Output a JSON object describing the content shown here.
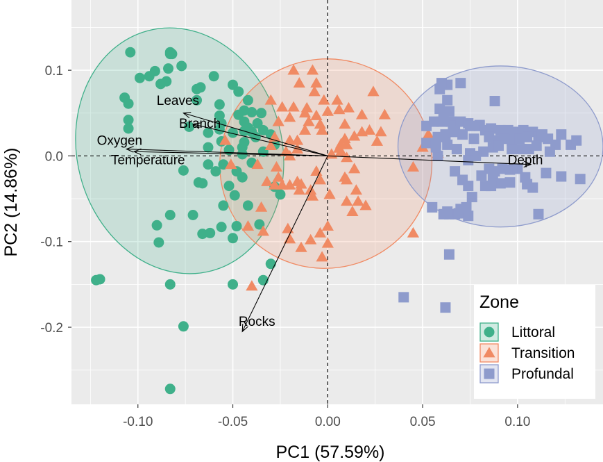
{
  "chart_data": {
    "type": "scatter",
    "xlabel": "PC1 (57.59%)",
    "ylabel": "PC2 (14.86%)",
    "xlim": [
      -0.135,
      0.145
    ],
    "ylim": [
      -0.29,
      0.182
    ],
    "x_ticks": [
      -0.1,
      -0.05,
      0.0,
      0.05,
      0.1
    ],
    "x_tick_labels": [
      "-0.10",
      "-0.05",
      "0.00",
      "0.05",
      "0.10"
    ],
    "y_ticks": [
      -0.2,
      -0.1,
      0.0,
      0.1
    ],
    "y_tick_labels": [
      "-0.2",
      "-0.1",
      "0.0",
      "0.1"
    ],
    "grid": true,
    "reference_lines": {
      "x": 0,
      "y": 0,
      "style": "dashed"
    },
    "legend": {
      "title": "Zone",
      "position": "bottom-right"
    },
    "colors": {
      "Littoral": "#3fb08a",
      "Transition": "#f08a63",
      "Profundal": "#8e9bcc",
      "panel_bg": "#ebebeb",
      "grid": "#ffffff"
    },
    "series": [
      {
        "name": "Littoral",
        "marker": "circle",
        "ellipse": {
          "cx": -0.078,
          "cy": 0.006,
          "rx": 0.054,
          "ry": 0.145,
          "angle_deg": -15
        },
        "points": [
          [
            -0.104,
            0.121
          ],
          [
            -0.083,
            0.121
          ],
          [
            -0.083,
            0.119
          ],
          [
            -0.082,
            0.119
          ],
          [
            -0.077,
            0.105
          ],
          [
            -0.084,
            0.102
          ],
          [
            -0.091,
            0.099
          ],
          [
            -0.094,
            0.093
          ],
          [
            -0.099,
            0.091
          ],
          [
            -0.06,
            0.093
          ],
          [
            -0.088,
            0.084
          ],
          [
            -0.085,
            0.087
          ],
          [
            -0.067,
            0.08
          ],
          [
            -0.05,
            0.083
          ],
          [
            -0.069,
            0.078
          ],
          [
            -0.069,
            0.065
          ],
          [
            -0.057,
            0.06
          ],
          [
            -0.047,
            0.075
          ],
          [
            -0.042,
            0.065
          ],
          [
            -0.044,
            0.053
          ],
          [
            -0.04,
            0.051
          ],
          [
            -0.057,
            0.047
          ],
          [
            -0.107,
            0.068
          ],
          [
            -0.105,
            0.061
          ],
          [
            -0.105,
            0.042
          ],
          [
            -0.105,
            0.032
          ],
          [
            -0.056,
            0.038
          ],
          [
            -0.073,
            0.034
          ],
          [
            -0.063,
            0.01
          ],
          [
            -0.05,
            0.027
          ],
          [
            -0.035,
            0.05
          ],
          [
            -0.03,
            0.025
          ],
          [
            -0.028,
            0.013
          ],
          [
            -0.038,
            0.022
          ],
          [
            -0.052,
            0.007
          ],
          [
            -0.045,
            0.002
          ],
          [
            -0.04,
            -0.008
          ],
          [
            -0.055,
            -0.01
          ],
          [
            -0.063,
            -0.01
          ],
          [
            -0.076,
            -0.017
          ],
          [
            -0.059,
            -0.018
          ],
          [
            -0.048,
            -0.018
          ],
          [
            -0.045,
            -0.025
          ],
          [
            -0.068,
            -0.031
          ],
          [
            -0.052,
            -0.035
          ],
          [
            -0.066,
            -0.032
          ],
          [
            -0.049,
            -0.046
          ],
          [
            -0.028,
            -0.036
          ],
          [
            -0.025,
            -0.045
          ],
          [
            -0.042,
            -0.058
          ],
          [
            -0.055,
            -0.058
          ],
          [
            -0.083,
            -0.069
          ],
          [
            -0.071,
            -0.069
          ],
          [
            -0.09,
            -0.081
          ],
          [
            -0.056,
            -0.083
          ],
          [
            -0.048,
            -0.082
          ],
          [
            -0.036,
            -0.08
          ],
          [
            -0.066,
            -0.091
          ],
          [
            -0.062,
            -0.09
          ],
          [
            -0.05,
            -0.096
          ],
          [
            -0.089,
            -0.101
          ],
          [
            -0.03,
            -0.126
          ],
          [
            -0.034,
            -0.145
          ],
          [
            -0.05,
            -0.15
          ],
          [
            -0.083,
            -0.15
          ],
          [
            -0.12,
            -0.144
          ],
          [
            -0.122,
            -0.145
          ],
          [
            -0.076,
            -0.199
          ],
          [
            -0.083,
            -0.272
          ],
          [
            -0.042,
            0.033
          ],
          [
            -0.037,
            0.038
          ],
          [
            -0.034,
            0.03
          ],
          [
            -0.045,
            0.01
          ],
          [
            -0.063,
            0.027
          ],
          [
            -0.034,
            0.005
          ],
          [
            -0.044,
            0.04
          ],
          [
            -0.047,
            0.048
          ],
          [
            -0.057,
            0.031
          ],
          [
            -0.044,
            0.029
          ],
          [
            -0.056,
            0.017
          ],
          [
            -0.044,
            0.016
          ],
          [
            -0.04,
            0.028
          ]
        ]
      },
      {
        "name": "Transition",
        "marker": "triangle",
        "ellipse": {
          "cx": -0.001,
          "cy": -0.009,
          "rx": 0.056,
          "ry": 0.122,
          "angle_deg": -20
        },
        "points": [
          [
            -0.018,
            0.1
          ],
          [
            -0.008,
            0.1
          ],
          [
            -0.015,
            0.085
          ],
          [
            -0.006,
            0.085
          ],
          [
            0.024,
            0.075
          ],
          [
            -0.007,
            0.075
          ],
          [
            -0.002,
            0.065
          ],
          [
            -0.03,
            0.065
          ],
          [
            0.005,
            0.065
          ],
          [
            -0.018,
            0.057
          ],
          [
            -0.024,
            0.057
          ],
          [
            -0.011,
            0.056
          ],
          [
            0.006,
            0.054
          ],
          [
            0.011,
            0.056
          ],
          [
            0.0,
            0.052
          ],
          [
            -0.012,
            0.05
          ],
          [
            0.018,
            0.048
          ],
          [
            0.03,
            0.048
          ],
          [
            -0.02,
            0.045
          ],
          [
            -0.006,
            0.047
          ],
          [
            -0.01,
            0.04
          ],
          [
            -0.026,
            0.04
          ],
          [
            -0.004,
            0.037
          ],
          [
            0.009,
            0.037
          ],
          [
            -0.012,
            0.03
          ],
          [
            -0.003,
            0.03
          ],
          [
            0.022,
            0.03
          ],
          [
            0.028,
            0.028
          ],
          [
            0.018,
            0.028
          ],
          [
            0.014,
            0.023
          ],
          [
            0.026,
            0.017
          ],
          [
            -0.02,
            0.018
          ],
          [
            -0.016,
            0.018
          ],
          [
            0.007,
            0.014
          ],
          [
            -0.03,
            0.012
          ],
          [
            -0.054,
            0.018
          ],
          [
            0.01,
            0.013
          ],
          [
            0.002,
            0.002
          ],
          [
            -0.022,
            0.005
          ],
          [
            -0.02,
            0.0
          ],
          [
            0.007,
            0.005
          ],
          [
            0.01,
            -0.002
          ],
          [
            -0.051,
            -0.01
          ],
          [
            -0.037,
            -0.01
          ],
          [
            -0.027,
            -0.013
          ],
          [
            -0.006,
            -0.018
          ],
          [
            0.014,
            -0.015
          ],
          [
            0.009,
            -0.025
          ],
          [
            -0.026,
            -0.025
          ],
          [
            -0.032,
            -0.03
          ],
          [
            -0.028,
            -0.034
          ],
          [
            -0.024,
            -0.034
          ],
          [
            -0.02,
            -0.034
          ],
          [
            -0.016,
            -0.03
          ],
          [
            -0.015,
            -0.04
          ],
          [
            -0.009,
            -0.04
          ],
          [
            -0.014,
            -0.033
          ],
          [
            -0.004,
            -0.028
          ],
          [
            0.01,
            -0.028
          ],
          [
            0.015,
            -0.04
          ],
          [
            -0.008,
            -0.047
          ],
          [
            0.001,
            -0.045
          ],
          [
            0.01,
            -0.053
          ],
          [
            0.016,
            -0.053
          ],
          [
            0.013,
            -0.065
          ],
          [
            0.02,
            -0.058
          ],
          [
            -0.035,
            -0.06
          ],
          [
            -0.042,
            -0.082
          ],
          [
            -0.034,
            -0.088
          ],
          [
            -0.021,
            -0.085
          ],
          [
            -0.02,
            -0.097
          ],
          [
            -0.014,
            -0.107
          ],
          [
            -0.009,
            -0.098
          ],
          [
            -0.004,
            -0.09
          ],
          [
            0.0,
            -0.082
          ],
          [
            0.0,
            -0.102
          ],
          [
            -0.003,
            -0.118
          ],
          [
            -0.04,
            -0.152
          ],
          [
            0.045,
            -0.09
          ],
          [
            0.045,
            -0.013
          ],
          [
            0.053,
            0.025
          ],
          [
            0.058,
            0.003
          ],
          [
            0.05,
            0.01
          ],
          [
            0.009,
            0.02
          ],
          [
            0.006,
            0.009
          ],
          [
            -0.028,
            0.022
          ],
          [
            -0.016,
            0.008
          ]
        ]
      },
      {
        "name": "Profundal",
        "marker": "square",
        "ellipse": {
          "cx": 0.091,
          "cy": 0.011,
          "rx": 0.054,
          "ry": 0.094,
          "angle_deg": 0
        },
        "points": [
          [
            0.063,
            0.083
          ],
          [
            0.059,
            0.078
          ],
          [
            0.06,
            0.085
          ],
          [
            0.07,
            0.085
          ],
          [
            0.063,
            0.065
          ],
          [
            0.064,
            0.052
          ],
          [
            0.059,
            0.055
          ],
          [
            0.061,
            0.05
          ],
          [
            0.088,
            0.064
          ],
          [
            0.08,
            0.036
          ],
          [
            0.052,
            0.035
          ],
          [
            0.056,
            0.04
          ],
          [
            0.06,
            0.04
          ],
          [
            0.065,
            0.04
          ],
          [
            0.067,
            0.035
          ],
          [
            0.07,
            0.04
          ],
          [
            0.074,
            0.038
          ],
          [
            0.075,
            0.035
          ],
          [
            0.08,
            0.035
          ],
          [
            0.083,
            0.03
          ],
          [
            0.086,
            0.032
          ],
          [
            0.091,
            0.03
          ],
          [
            0.095,
            0.03
          ],
          [
            0.099,
            0.028
          ],
          [
            0.103,
            0.03
          ],
          [
            0.108,
            0.028
          ],
          [
            0.111,
            0.022
          ],
          [
            0.113,
            0.025
          ],
          [
            0.123,
            0.025
          ],
          [
            0.058,
            0.022
          ],
          [
            0.062,
            0.025
          ],
          [
            0.066,
            0.028
          ],
          [
            0.071,
            0.025
          ],
          [
            0.077,
            0.02
          ],
          [
            0.085,
            0.022
          ],
          [
            0.089,
            0.018
          ],
          [
            0.093,
            0.02
          ],
          [
            0.097,
            0.018
          ],
          [
            0.101,
            0.02
          ],
          [
            0.105,
            0.022
          ],
          [
            0.116,
            0.02
          ],
          [
            0.12,
            0.013
          ],
          [
            0.128,
            0.013
          ],
          [
            0.131,
            0.018
          ],
          [
            0.052,
            0.015
          ],
          [
            0.057,
            0.015
          ],
          [
            0.058,
            0.0
          ],
          [
            0.075,
            0.003
          ],
          [
            0.082,
            0.005
          ],
          [
            0.078,
            0.0
          ],
          [
            0.087,
            0.01
          ],
          [
            0.09,
            0.012
          ],
          [
            0.097,
            0.008
          ],
          [
            0.102,
            0.008
          ],
          [
            0.106,
            0.008
          ],
          [
            0.11,
            0.012
          ],
          [
            0.117,
            0.005
          ],
          [
            0.057,
            0.01
          ],
          [
            0.063,
            0.013
          ],
          [
            0.068,
            0.008
          ],
          [
            0.074,
            -0.005
          ],
          [
            0.067,
            -0.018
          ],
          [
            0.085,
            -0.015
          ],
          [
            0.088,
            -0.018
          ],
          [
            0.092,
            -0.015
          ],
          [
            0.096,
            -0.016
          ],
          [
            0.1,
            -0.015
          ],
          [
            0.104,
            -0.025
          ],
          [
            0.115,
            -0.02
          ],
          [
            0.081,
            -0.023
          ],
          [
            0.087,
            -0.027
          ],
          [
            0.091,
            -0.032
          ],
          [
            0.083,
            -0.035
          ],
          [
            0.086,
            -0.035
          ],
          [
            0.096,
            -0.031
          ],
          [
            0.105,
            -0.033
          ],
          [
            0.108,
            -0.037
          ],
          [
            0.133,
            -0.027
          ],
          [
            0.123,
            -0.024
          ],
          [
            0.071,
            -0.028
          ],
          [
            0.074,
            -0.035
          ],
          [
            0.076,
            -0.048
          ],
          [
            0.07,
            -0.062
          ],
          [
            0.064,
            -0.068
          ],
          [
            0.061,
            -0.068
          ],
          [
            0.067,
            -0.068
          ],
          [
            0.069,
            -0.067
          ],
          [
            0.074,
            -0.07
          ],
          [
            0.055,
            -0.06
          ],
          [
            0.063,
            -0.065
          ],
          [
            0.073,
            -0.06
          ],
          [
            0.111,
            -0.068
          ],
          [
            0.064,
            -0.115
          ],
          [
            0.04,
            -0.165
          ],
          [
            0.062,
            -0.177
          ]
        ]
      }
    ],
    "loadings": [
      {
        "name": "Leaves",
        "x": -0.076,
        "y": 0.05
      },
      {
        "name": "Branch",
        "x": -0.071,
        "y": 0.037
      },
      {
        "name": "Oxygen",
        "x": -0.106,
        "y": 0.008
      },
      {
        "name": "Temperature",
        "x": -0.102,
        "y": 0.005
      },
      {
        "name": "Depth",
        "x": 0.107,
        "y": -0.01
      },
      {
        "name": "Rocks",
        "x": -0.045,
        "y": -0.205
      }
    ]
  }
}
